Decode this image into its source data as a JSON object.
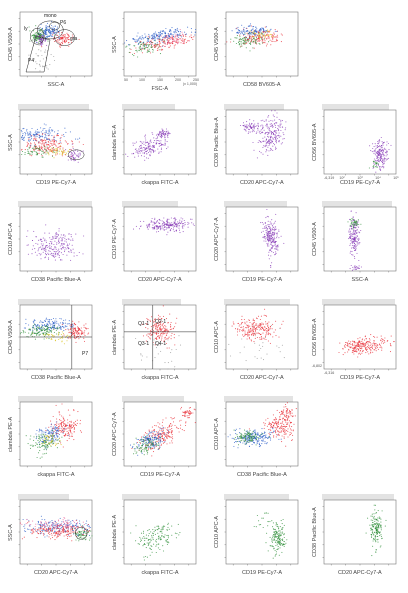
{
  "colors": {
    "purple": "#8a3fb8",
    "red": "#e8313a",
    "blue": "#2c5ec8",
    "green": "#2f8f3a",
    "pink": "#e86aa0",
    "yellow": "#d9c21c",
    "gray": "#9a9a9a",
    "gate": "#222222"
  },
  "chart_data": [
    {
      "type": "scatter",
      "row": 0,
      "col": 0,
      "xlabel": "SSC-A",
      "ylabel": "CD45 V500-A",
      "gates": [
        "mono",
        "P6",
        "gra",
        "P4",
        "ly"
      ]
    },
    {
      "type": "scatter",
      "row": 0,
      "col": 1,
      "xlabel": "FSC-A",
      "ylabel": "SSC-A",
      "xtick_note": "(x 1,000)",
      "xticks": [
        "50",
        "100",
        "150",
        "200",
        "250"
      ]
    },
    {
      "type": "scatter",
      "row": 0,
      "col": 2,
      "xlabel": "CD58 BV605-A",
      "ylabel": "CD45 V500-A"
    },
    {
      "type": "scatter",
      "row": 1,
      "col": 0,
      "xlabel": "CD19 PE-Cy7-A",
      "ylabel": "SSC-A"
    },
    {
      "type": "scatter",
      "row": 1,
      "col": 1,
      "xlabel": "ckappa FITC-A",
      "ylabel": "clambda PE-A"
    },
    {
      "type": "scatter",
      "row": 1,
      "col": 2,
      "xlabel": "CD20 APC-Cy7-A",
      "ylabel": "CD38 Pacific Blue-A"
    },
    {
      "type": "scatter",
      "row": 1,
      "col": 3,
      "xlabel": "CD19 PE-Cy7-A",
      "ylabel": "CD56 BV605-A",
      "xticks": [
        "-6,319",
        "10²",
        "10³",
        "10⁴",
        "10⁵"
      ]
    },
    {
      "type": "scatter",
      "row": 2,
      "col": 0,
      "xlabel": "CD38 Pacific Blue-A",
      "ylabel": "CD10 APC-A"
    },
    {
      "type": "scatter",
      "row": 2,
      "col": 1,
      "xlabel": "CD20 APC-Cy7-A",
      "ylabel": "CD19 PE-Cy7-A"
    },
    {
      "type": "scatter",
      "row": 2,
      "col": 2,
      "xlabel": "CD19 PE-Cy7-A",
      "ylabel": "CD20 APC-Cy7-A"
    },
    {
      "type": "scatter",
      "row": 2,
      "col": 3,
      "xlabel": "SSC-A",
      "ylabel": "CD45 V500-A"
    },
    {
      "type": "scatter",
      "row": 3,
      "col": 0,
      "xlabel": "CD38 Pacific Blue-A",
      "ylabel": "CD45 V500-A",
      "gates": [
        "P7"
      ]
    },
    {
      "type": "scatter",
      "row": 3,
      "col": 1,
      "xlabel": "ckappa FITC-A",
      "ylabel": "clambda PE-A",
      "gates": [
        "Q1-1",
        "Q2-1",
        "Q3-1",
        "Q4-1"
      ]
    },
    {
      "type": "scatter",
      "row": 3,
      "col": 2,
      "xlabel": "CD20 APC-Cy7-A",
      "ylabel": "CD10 APC-A"
    },
    {
      "type": "scatter",
      "row": 3,
      "col": 3,
      "xlabel": "CD19 PE-Cy7-A",
      "ylabel": "CD56 BV605-A",
      "yticks": [
        "-6,802"
      ],
      "xticks": [
        "-6,316"
      ]
    },
    {
      "type": "scatter",
      "row": 4,
      "col": 0,
      "xlabel": "ckappa FITC-A",
      "ylabel": "clambda PE-A"
    },
    {
      "type": "scatter",
      "row": 4,
      "col": 1,
      "xlabel": "CD19 PE-Cy7-A",
      "ylabel": "CD20 APC-Cy7-A"
    },
    {
      "type": "scatter",
      "row": 4,
      "col": 2,
      "xlabel": "CD38 Pacific Blue-A",
      "ylabel": "CD10 APC-A"
    },
    {
      "type": "scatter",
      "row": 5,
      "col": 0,
      "xlabel": "CD20 APC-Cy7-A",
      "ylabel": "SSC-A"
    },
    {
      "type": "scatter",
      "row": 5,
      "col": 1,
      "xlabel": "ckappa FITC-A",
      "ylabel": "clambda PE-A"
    },
    {
      "type": "scatter",
      "row": 5,
      "col": 2,
      "xlabel": "CD19 PE-Cy7-A",
      "ylabel": "CD10 APC-A"
    },
    {
      "type": "scatter",
      "row": 5,
      "col": 3,
      "xlabel": "CD20 APC-Cy7-A",
      "ylabel": "CD38 Pacific Blue-A"
    }
  ]
}
